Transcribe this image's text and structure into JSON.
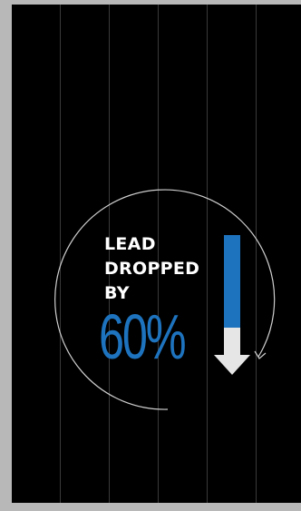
{
  "infographic": {
    "headline_line1": "LEAD",
    "headline_line2": "DROPPED",
    "headline_line3": "BY",
    "percent": "60%",
    "drop_fraction": 0.6
  },
  "colors": {
    "background": "#000000",
    "frame": "#b8b8b8",
    "accent": "#1e73be",
    "text": "#ffffff",
    "arrow": "#e6e6e6",
    "lines": "#3a3a3a"
  },
  "icons": [
    "circular-arrow-icon",
    "down-arrow-icon"
  ]
}
